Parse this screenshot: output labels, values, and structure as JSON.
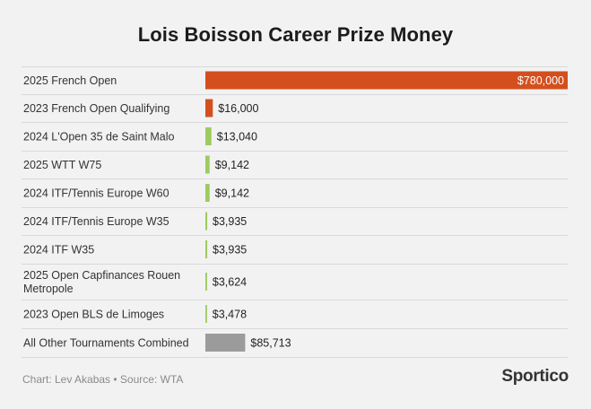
{
  "title": "Lois Boisson Career Prize Money",
  "footer": {
    "source_note": "Chart: Lev Akabas • Source: WTA",
    "brand": "Sportico"
  },
  "colors": {
    "highlight_bar": "#d44f1e",
    "standard_bar": "#9dcb5d",
    "other_bar": "#9b9b9b"
  },
  "chart_data": {
    "type": "bar",
    "orientation": "horizontal",
    "title": "Lois Boisson Career Prize Money",
    "categories": [
      "2025 French Open",
      "2023 French Open Qualifying",
      "2024 L'Open 35 de Saint Malo",
      "2025 WTT W75",
      "2024 ITF/Tennis Europe W60",
      "2024 ITF/Tennis Europe W35",
      "2024 ITF W35",
      "2025 Open Capfinances Rouen Metropole",
      "2023 Open BLS de Limoges",
      "All Other Tournaments Combined"
    ],
    "values": [
      780000,
      16000,
      13040,
      9142,
      9142,
      3935,
      3935,
      3624,
      3478,
      85713
    ],
    "value_labels": [
      "$780,000",
      "$16,000",
      "$13,040",
      "$9,142",
      "$9,142",
      "$3,935",
      "$3,935",
      "$3,624",
      "$3,478",
      "$85,713"
    ],
    "bar_colors": [
      "#d44f1e",
      "#d44f1e",
      "#9dcb5d",
      "#9dcb5d",
      "#9dcb5d",
      "#9dcb5d",
      "#9dcb5d",
      "#9dcb5d",
      "#9dcb5d",
      "#9b9b9b"
    ],
    "xlim": [
      0,
      780000
    ],
    "grid": false,
    "legend": "none"
  }
}
